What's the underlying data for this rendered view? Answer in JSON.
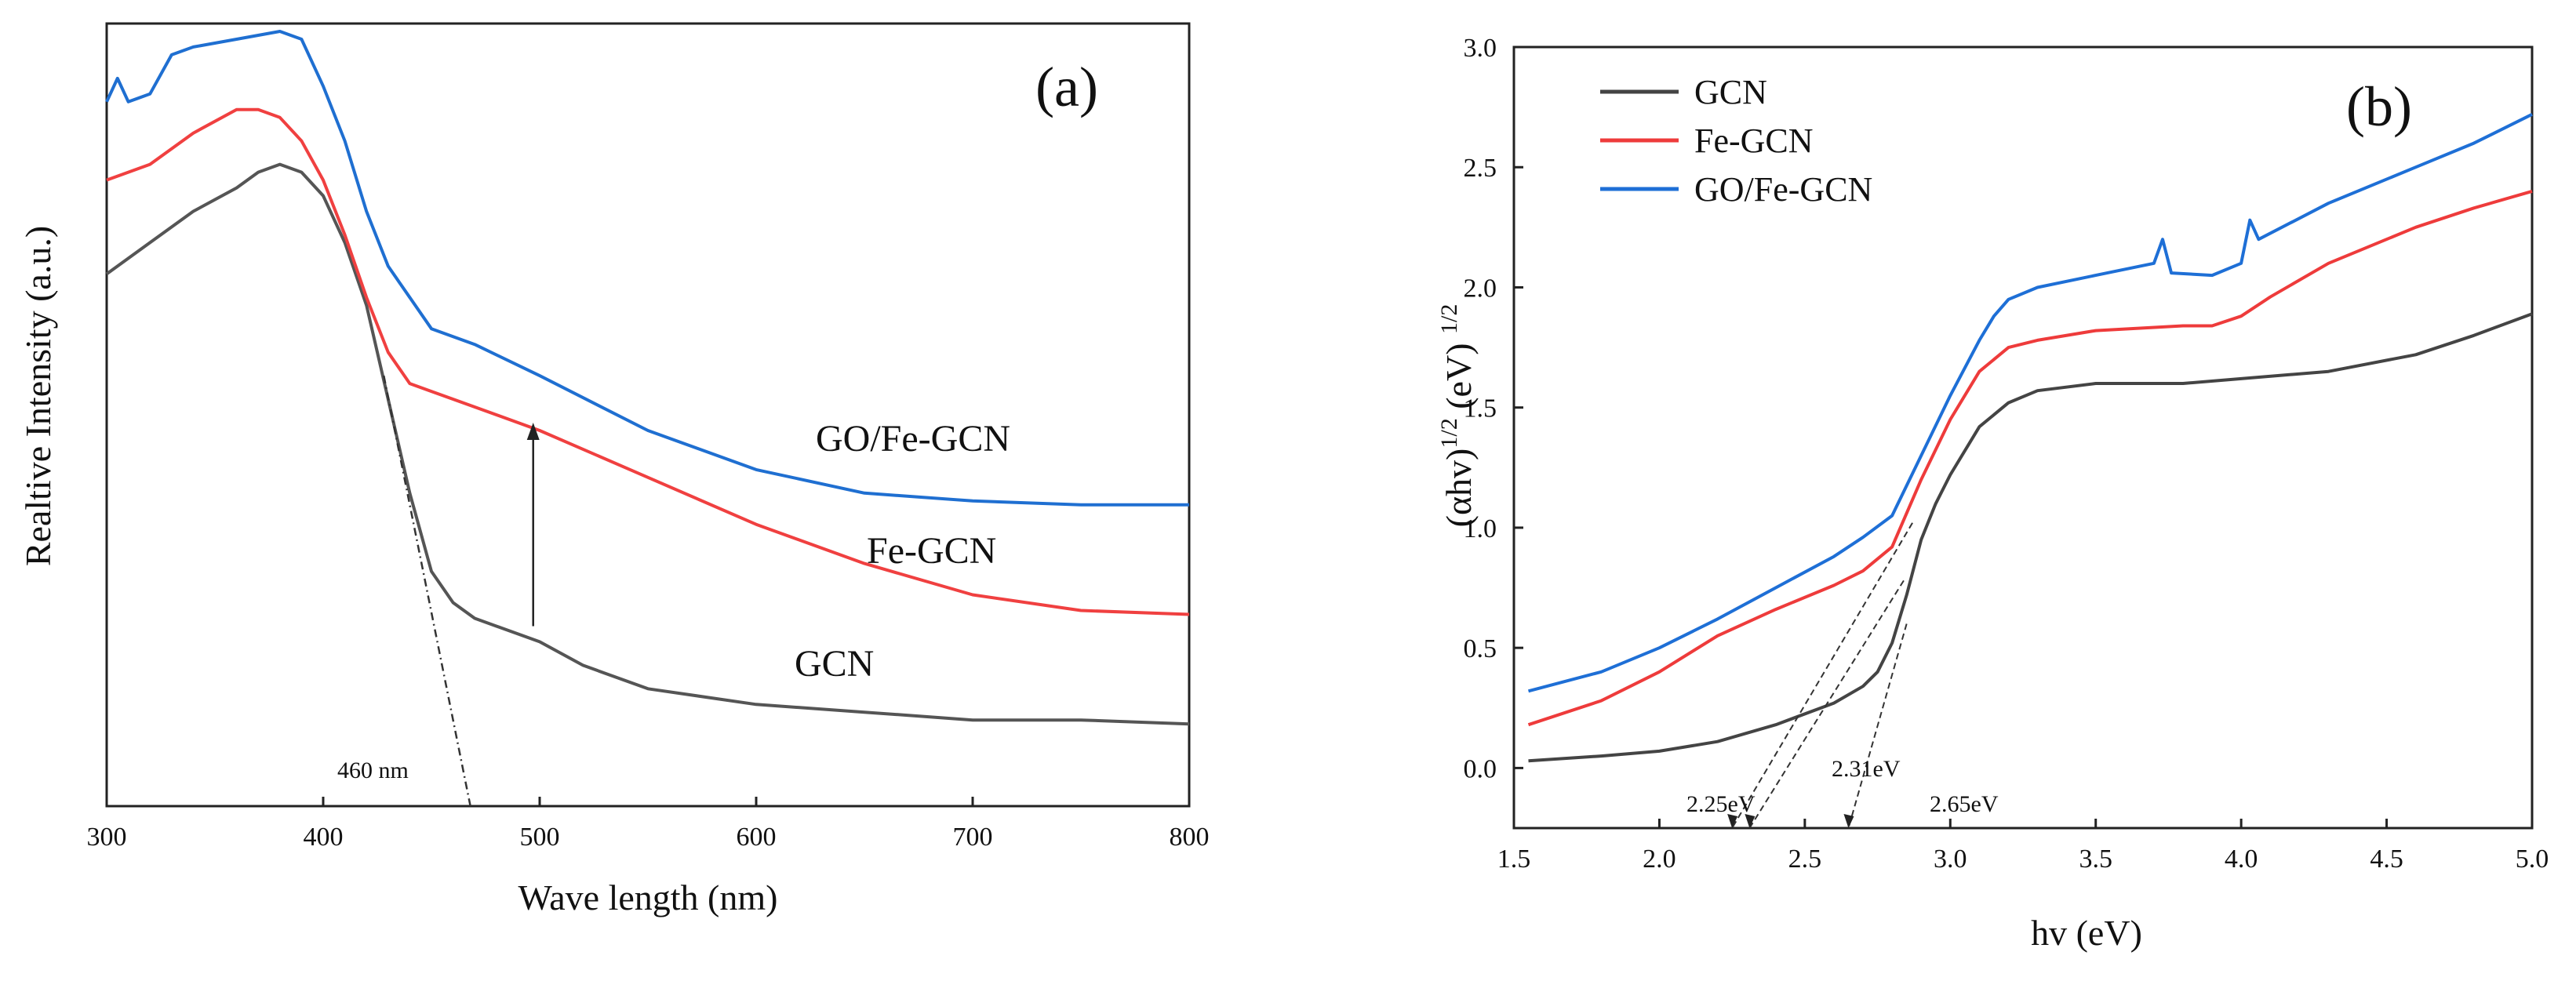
{
  "chart_data": [
    {
      "type": "line",
      "panel_label": "(a)",
      "xlabel": "Wave length (nm)",
      "ylabel": "Realtive Intensity (a.u.)",
      "xlim": [
        300,
        800
      ],
      "ylim": [
        0,
        1
      ],
      "xticks": [
        "300",
        "400",
        "500",
        "600",
        "700",
        "800"
      ],
      "series": [
        {
          "name": "GCN",
          "color": "#555555",
          "x": [
            300,
            310,
            320,
            340,
            360,
            370,
            380,
            390,
            400,
            410,
            420,
            430,
            440,
            450,
            460,
            470,
            480,
            500,
            520,
            550,
            600,
            650,
            700,
            750,
            800
          ],
          "y": [
            0.68,
            0.7,
            0.72,
            0.76,
            0.79,
            0.81,
            0.82,
            0.81,
            0.78,
            0.72,
            0.64,
            0.52,
            0.4,
            0.3,
            0.26,
            0.24,
            0.23,
            0.21,
            0.18,
            0.15,
            0.13,
            0.12,
            0.11,
            0.11,
            0.105
          ]
        },
        {
          "name": "Fe-GCN",
          "color": "#f04040",
          "x": [
            300,
            310,
            320,
            340,
            360,
            370,
            380,
            390,
            400,
            410,
            420,
            430,
            440,
            450,
            470,
            500,
            550,
            600,
            650,
            700,
            750,
            800
          ],
          "y": [
            0.8,
            0.81,
            0.82,
            0.86,
            0.89,
            0.89,
            0.88,
            0.85,
            0.8,
            0.73,
            0.65,
            0.58,
            0.54,
            0.53,
            0.51,
            0.48,
            0.42,
            0.36,
            0.31,
            0.27,
            0.25,
            0.245
          ]
        },
        {
          "name": "GO/Fe-GCN",
          "color": "#1f6fd1",
          "x": [
            300,
            305,
            310,
            320,
            330,
            340,
            360,
            380,
            390,
            400,
            410,
            420,
            430,
            440,
            450,
            470,
            500,
            550,
            600,
            650,
            700,
            750,
            800
          ],
          "y": [
            0.9,
            0.93,
            0.9,
            0.91,
            0.96,
            0.97,
            0.98,
            0.99,
            0.98,
            0.92,
            0.85,
            0.76,
            0.69,
            0.65,
            0.61,
            0.59,
            0.55,
            0.48,
            0.43,
            0.4,
            0.39,
            0.385,
            0.385
          ]
        }
      ],
      "series_labels": [
        "GO/Fe-GCN",
        "Fe-GCN",
        "GCN"
      ],
      "annotations": [
        {
          "text": "460 nm",
          "x": 460,
          "y": 0.02
        }
      ],
      "tangent_line": {
        "from": [
          428,
          0.55
        ],
        "to": [
          468,
          0.0
        ]
      },
      "arrow": {
        "x": 497,
        "from_y": 0.23,
        "to_y": 0.49
      }
    },
    {
      "type": "line",
      "panel_label": "(b)",
      "xlabel": "hv (eV)",
      "ylabel": "(αhv)¹′² (eV) ¹′²",
      "ylabel_main": "(αhv)",
      "ylabel_sup1": "1/2",
      "ylabel_unit": " (eV) ",
      "ylabel_sup2": "1/2",
      "xlim": [
        1.5,
        5.0
      ],
      "ylim": [
        -0.25,
        3.0
      ],
      "xticks": [
        "1.5",
        "2.0",
        "2.5",
        "3.0",
        "3.5",
        "4.0",
        "4.5",
        "5.0"
      ],
      "yticks": [
        "0.0",
        "0.5",
        "1.0",
        "1.5",
        "2.0",
        "2.5",
        "3.0"
      ],
      "series": [
        {
          "name": "GCN",
          "color": "#444444",
          "x": [
            1.55,
            1.8,
            2.0,
            2.2,
            2.4,
            2.6,
            2.7,
            2.75,
            2.8,
            2.85,
            2.9,
            2.95,
            3.0,
            3.1,
            3.2,
            3.3,
            3.5,
            3.8,
            4.0,
            4.3,
            4.6,
            4.8,
            5.0
          ],
          "y": [
            0.03,
            0.05,
            0.07,
            0.11,
            0.18,
            0.27,
            0.34,
            0.4,
            0.52,
            0.72,
            0.95,
            1.1,
            1.22,
            1.42,
            1.52,
            1.57,
            1.6,
            1.6,
            1.62,
            1.65,
            1.72,
            1.8,
            1.89
          ]
        },
        {
          "name": "Fe-GCN",
          "color": "#ee3b3b",
          "x": [
            1.55,
            1.8,
            2.0,
            2.2,
            2.4,
            2.6,
            2.7,
            2.8,
            2.9,
            3.0,
            3.1,
            3.2,
            3.3,
            3.5,
            3.8,
            3.9,
            4.0,
            4.1,
            4.3,
            4.6,
            4.8,
            5.0
          ],
          "y": [
            0.18,
            0.28,
            0.4,
            0.55,
            0.66,
            0.76,
            0.82,
            0.92,
            1.2,
            1.45,
            1.65,
            1.75,
            1.78,
            1.82,
            1.84,
            1.84,
            1.88,
            1.96,
            2.1,
            2.25,
            2.33,
            2.4
          ]
        },
        {
          "name": "GO/Fe-GCN",
          "color": "#1e6fd6",
          "x": [
            1.55,
            1.8,
            2.0,
            2.2,
            2.4,
            2.6,
            2.7,
            2.8,
            2.9,
            3.0,
            3.1,
            3.15,
            3.2,
            3.3,
            3.5,
            3.7,
            3.73,
            3.76,
            3.9,
            4.0,
            4.03,
            4.06,
            4.3,
            4.6,
            4.8,
            5.0
          ],
          "y": [
            0.32,
            0.4,
            0.5,
            0.62,
            0.75,
            0.88,
            0.96,
            1.05,
            1.3,
            1.55,
            1.78,
            1.88,
            1.95,
            2.0,
            2.05,
            2.1,
            2.2,
            2.06,
            2.05,
            2.1,
            2.28,
            2.2,
            2.35,
            2.5,
            2.6,
            2.72
          ]
        }
      ],
      "legend": [
        "GCN",
        "Fe-GCN",
        "GO/Fe-GCN"
      ],
      "legend_position": "top-left",
      "annotations": [
        {
          "text": "2.25eV",
          "x": 2.25
        },
        {
          "text": "2.31eV",
          "x": 2.31
        },
        {
          "text": "2.65eV",
          "x": 2.65
        }
      ],
      "tangent_lines": [
        {
          "from": [
            2.87,
            1.02
          ],
          "to": [
            2.25,
            -0.25
          ]
        },
        {
          "from": [
            2.84,
            0.78
          ],
          "to": [
            2.31,
            -0.25
          ]
        },
        {
          "from": [
            2.85,
            0.6
          ],
          "to": [
            2.65,
            -0.25
          ]
        }
      ]
    }
  ]
}
